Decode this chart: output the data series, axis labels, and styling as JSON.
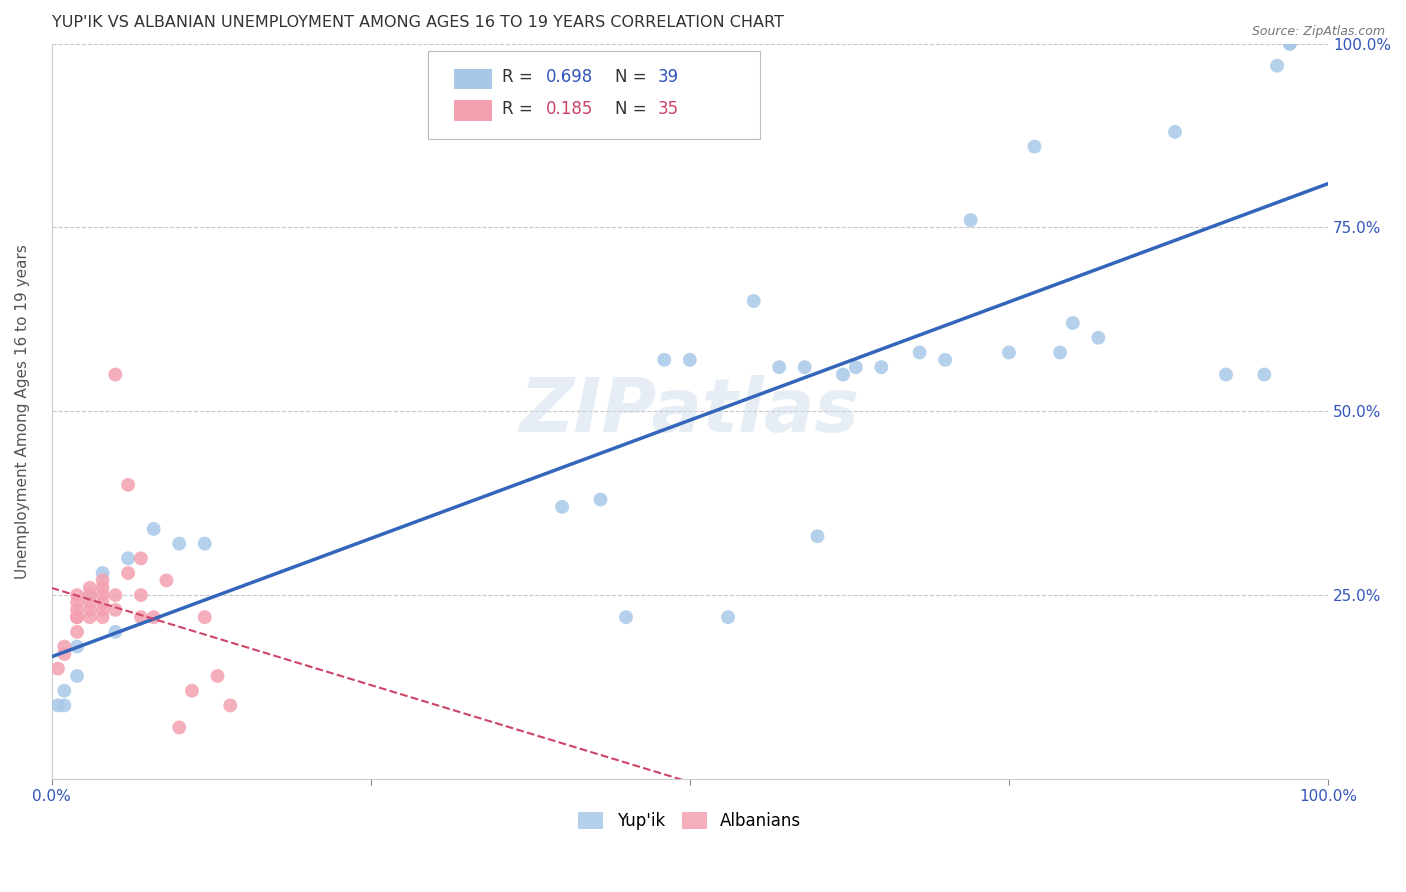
{
  "title": "YUP'IK VS ALBANIAN UNEMPLOYMENT AMONG AGES 16 TO 19 YEARS CORRELATION CHART",
  "source": "Source: ZipAtlas.com",
  "ylabel": "Unemployment Among Ages 16 to 19 years",
  "xlim": [
    0.0,
    1.0
  ],
  "ylim": [
    0.0,
    1.0
  ],
  "legend_r1": "0.698",
  "legend_n1": "39",
  "legend_r2": "0.185",
  "legend_n2": "35",
  "watermark": "ZIPatlas",
  "yupik_color": "#a8c8e8",
  "albanian_color": "#f4a0b0",
  "yupik_line_color": "#3366bb",
  "albanian_line_color": "#cc4466",
  "grid_color": "#c8c8c8",
  "background_color": "#ffffff",
  "yupik_x": [
    0.97,
    0.97,
    0.96,
    0.95,
    0.92,
    0.88,
    0.82,
    0.8,
    0.79,
    0.77,
    0.75,
    0.72,
    0.7,
    0.68,
    0.65,
    0.63,
    0.62,
    0.6,
    0.59,
    0.57,
    0.55,
    0.53,
    0.5,
    0.48,
    0.45,
    0.43,
    0.4,
    0.12,
    0.1,
    0.08,
    0.06,
    0.05,
    0.04,
    0.03,
    0.02,
    0.02,
    0.01,
    0.01,
    0.005
  ],
  "yupik_y": [
    1.0,
    1.0,
    0.97,
    0.55,
    0.55,
    0.88,
    0.6,
    0.62,
    0.58,
    0.86,
    0.58,
    0.76,
    0.57,
    0.58,
    0.56,
    0.56,
    0.55,
    0.33,
    0.56,
    0.56,
    0.65,
    0.22,
    0.57,
    0.57,
    0.22,
    0.38,
    0.37,
    0.32,
    0.32,
    0.34,
    0.3,
    0.2,
    0.28,
    0.25,
    0.18,
    0.14,
    0.12,
    0.1,
    0.1
  ],
  "albanian_x": [
    0.005,
    0.01,
    0.01,
    0.02,
    0.02,
    0.02,
    0.02,
    0.02,
    0.02,
    0.03,
    0.03,
    0.03,
    0.03,
    0.03,
    0.04,
    0.04,
    0.04,
    0.04,
    0.04,
    0.04,
    0.05,
    0.05,
    0.05,
    0.06,
    0.06,
    0.07,
    0.07,
    0.07,
    0.08,
    0.09,
    0.1,
    0.11,
    0.12,
    0.13,
    0.14
  ],
  "albanian_y": [
    0.15,
    0.17,
    0.18,
    0.2,
    0.22,
    0.22,
    0.23,
    0.24,
    0.25,
    0.22,
    0.23,
    0.24,
    0.25,
    0.26,
    0.22,
    0.23,
    0.24,
    0.25,
    0.26,
    0.27,
    0.23,
    0.25,
    0.55,
    0.28,
    0.4,
    0.22,
    0.25,
    0.3,
    0.22,
    0.27,
    0.07,
    0.12,
    0.22,
    0.14,
    0.1
  ],
  "marker_size": 100
}
